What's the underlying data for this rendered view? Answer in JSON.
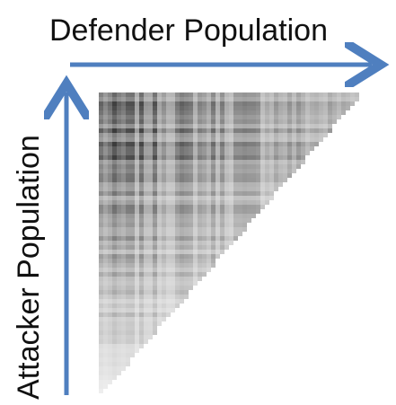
{
  "diagram": {
    "x_axis_label": "Defender Population",
    "y_axis_label": "Attacker Population",
    "arrow_color": "#4f7fbf",
    "matrix_shape": "lower-left triangular heatmap, darkest at top-left",
    "ink_color": "#000000"
  }
}
